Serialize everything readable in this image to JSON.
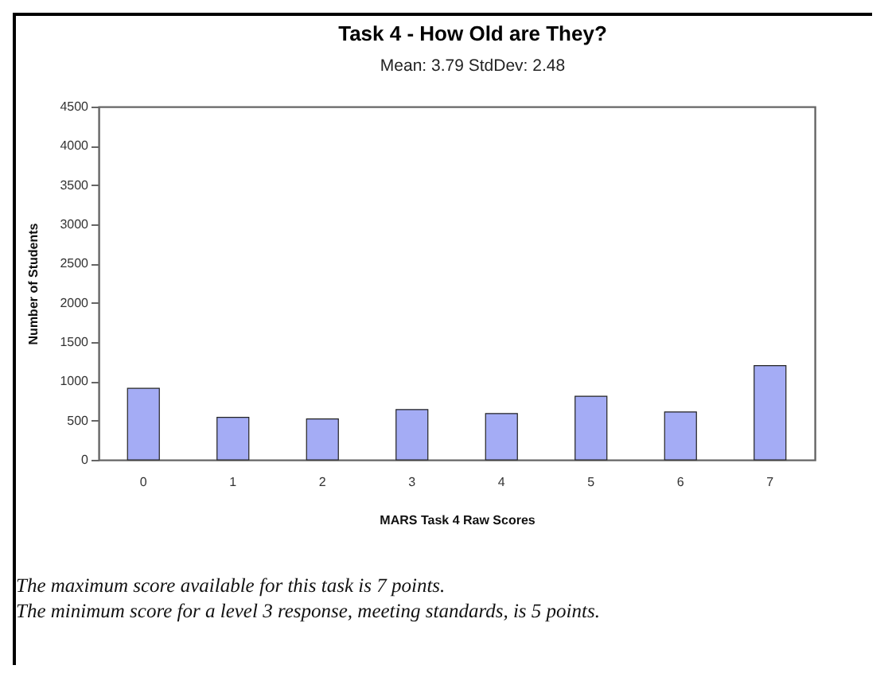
{
  "chart_data": {
    "type": "bar",
    "title": "Task 4 - How Old are They?",
    "subtitle": "Mean: 3.79          StdDev: 2.48",
    "xlabel": "MARS Task 4 Raw Scores",
    "ylabel": "Number of Students",
    "categories": [
      "0",
      "1",
      "2",
      "3",
      "4",
      "5",
      "6",
      "7"
    ],
    "values": [
      910,
      540,
      520,
      640,
      590,
      810,
      610,
      1200
    ],
    "color": "#a4acf5",
    "ylim": [
      0,
      4500
    ],
    "yticks": [
      0,
      500,
      1000,
      1500,
      2000,
      2500,
      3000,
      3500,
      4000,
      4500
    ],
    "grid": false,
    "annotations": [
      "The maximum score available for this task is 7 points.",
      "The minimum score for a level 3 response, meeting standards, is 5 points."
    ]
  }
}
